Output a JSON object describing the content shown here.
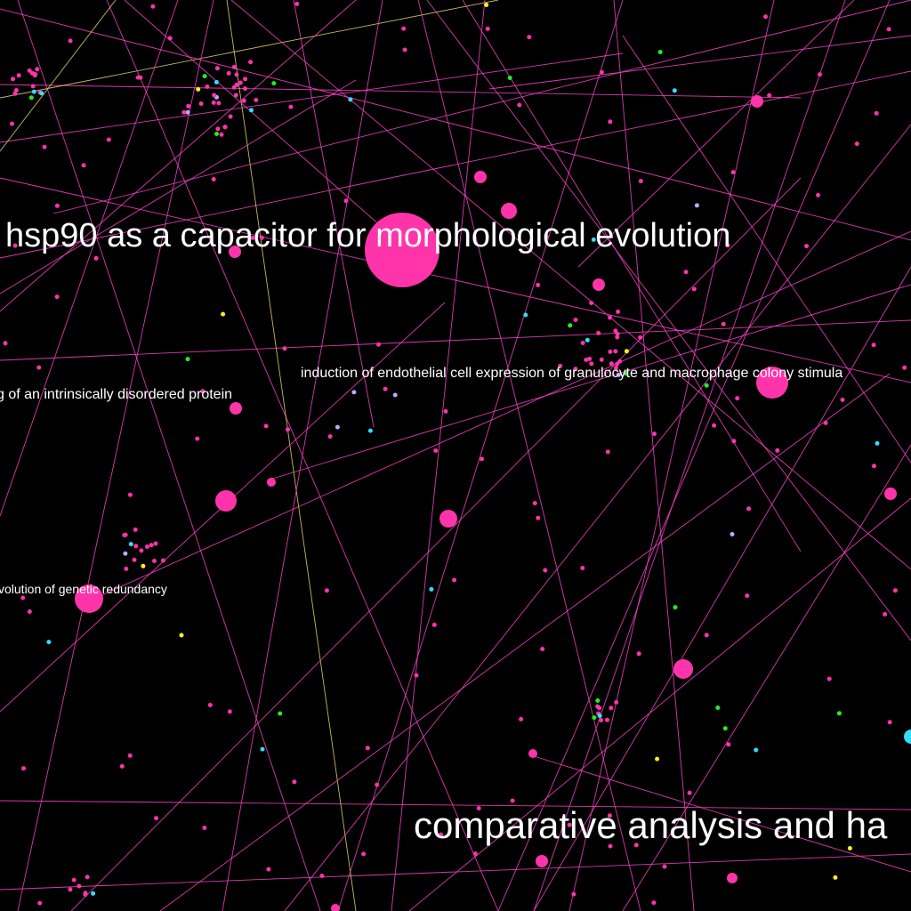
{
  "colors": {
    "background": "#000000",
    "edge": "#ff44cc",
    "edge_alt": "#e8d870",
    "node": "#ff33aa",
    "node_cyan": "#33ddff",
    "node_green": "#22ee22",
    "node_yellow": "#ffee22",
    "node_lavender": "#bbaaff",
    "label": "#ffffff"
  },
  "labels": {
    "hsp90": "hsp90 as a capacitor for morphological evolution",
    "induction": "induction of endothelial cell expression of granulocyte and macrophage colony stimula",
    "disordered": "g of an intrinsically disordered protein",
    "redundancy": "volution of genetic redundancy",
    "comparative": "comparative analysis and ha"
  }
}
